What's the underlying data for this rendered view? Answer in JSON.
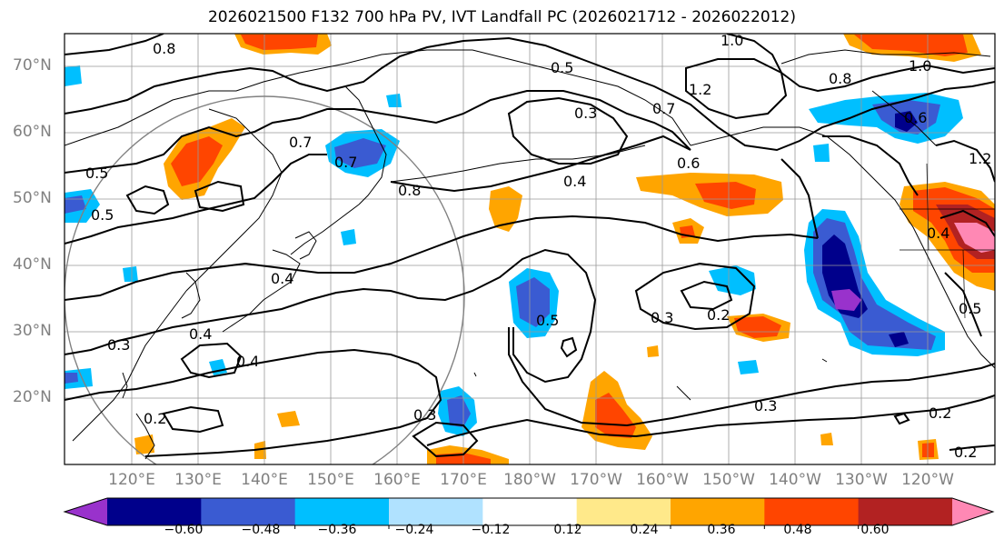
{
  "title": "2026021500 F132 700 hPa PV, IVT Landfall PC (2026021712 - 2026022012)",
  "lat_labels": [
    "70°N",
    "60°N",
    "50°N",
    "40°N",
    "30°N",
    "20°N"
  ],
  "lon_labels": [
    "120°E",
    "130°E",
    "140°E",
    "150°E",
    "160°E",
    "170°E",
    "180°W",
    "170°W",
    "160°W",
    "150°W",
    "140°W",
    "130°W",
    "120°W"
  ],
  "contour_labels": [
    "0.8",
    "1.0",
    "0.5",
    "0.3",
    "0.7",
    "1.2",
    "0.8",
    "0.6",
    "1.0",
    "1.2",
    "0.7",
    "0.4",
    "0.6",
    "0.5",
    "0.7",
    "0.8",
    "0.5",
    "0.4",
    "0.4",
    "0.5",
    "0.3",
    "0.2",
    "0.3",
    "0.4",
    "0.4",
    "0.3",
    "0.2",
    "0.3",
    "0.2",
    "0.5",
    "0.2"
  ],
  "colorbar": {
    "ticks": [
      "−0.60",
      "−0.48",
      "−0.36",
      "−0.24",
      "−0.12",
      "0.12",
      "0.24",
      "0.36",
      "0.48",
      "0.60"
    ],
    "colors": [
      "#9932cc",
      "#00008b",
      "#3a5bd2",
      "#00bfff",
      "#b0e2ff",
      "#ffffff",
      "#ffe98a",
      "#ffa500",
      "#ff4500",
      "#b22222",
      "#ff88b4"
    ]
  }
}
